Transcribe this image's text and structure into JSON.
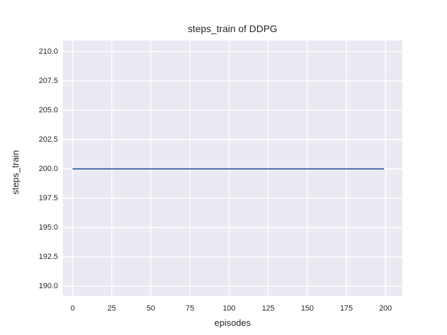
{
  "chart_data": {
    "type": "line",
    "title": "steps_train of DDPG",
    "xlabel": "episodes",
    "ylabel": "steps_train",
    "xlim": [
      -6.25,
      210.71
    ],
    "ylim": [
      189.17,
      210.95
    ],
    "xticks": [
      0,
      25,
      50,
      75,
      100,
      125,
      150,
      175,
      200
    ],
    "xtick_labels": [
      "0",
      "25",
      "50",
      "75",
      "100",
      "125",
      "150",
      "175",
      "200"
    ],
    "yticks": [
      190.0,
      192.5,
      195.0,
      197.5,
      200.0,
      202.5,
      205.0,
      207.5,
      210.0
    ],
    "ytick_labels": [
      "190.0",
      "192.5",
      "195.0",
      "197.5",
      "200.0",
      "202.5",
      "205.0",
      "207.5",
      "210.0"
    ],
    "grid": true,
    "legend": null,
    "series": [
      {
        "name": "steps_train",
        "constant_value": 200,
        "x_range": [
          0,
          199
        ],
        "points": [
          [
            0,
            200
          ],
          [
            199,
            200
          ]
        ]
      }
    ],
    "colors": {
      "figure_bg": "#ffffff",
      "plot_bg": "#eaeaf2",
      "grid": "#ffffff",
      "line": "#4c72b0",
      "text": "#262626"
    }
  }
}
